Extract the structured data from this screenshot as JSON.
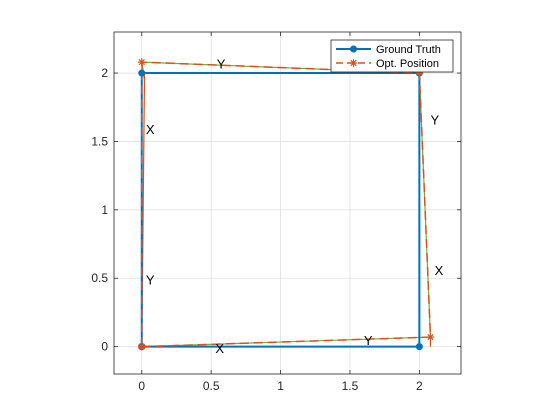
{
  "chart_data": {
    "type": "line",
    "xlim": [
      -0.2,
      2.3
    ],
    "ylim": [
      -0.2,
      2.3
    ],
    "xticks": [
      0,
      0.5,
      1,
      1.5,
      2
    ],
    "yticks": [
      0,
      0.5,
      1,
      1.5,
      2
    ],
    "xtick_labels": [
      "0",
      "0.5",
      "1",
      "1.5",
      "2"
    ],
    "ytick_labels": [
      "0",
      "0.5",
      "1",
      "1.5",
      "2"
    ],
    "grid": true,
    "legend_position": "top-right",
    "series": [
      {
        "name": "Ground Truth",
        "color": "#0072BD",
        "style": "solid",
        "marker": "circle",
        "x": [
          0,
          2,
          2,
          0,
          0
        ],
        "y": [
          0,
          0,
          2,
          2,
          0
        ]
      },
      {
        "name": "Opt. Position",
        "color": "#D95319",
        "style": "dashed",
        "marker": "asterisk",
        "x": [
          0,
          2.08,
          2.0,
          0.0,
          0.0
        ],
        "y": [
          0,
          0.07,
          2.0,
          2.08,
          0.0
        ]
      }
    ],
    "orientation_segments": [
      {
        "color": "#D95319",
        "x": [
          2.08,
          2.08
        ],
        "y": [
          0.07,
          0.0
        ]
      },
      {
        "color": "#77AC30",
        "x": [
          2.08,
          0.0
        ],
        "y": [
          0.07,
          0.0
        ]
      },
      {
        "color": "#77AC30",
        "x": [
          2.0,
          2.08
        ],
        "y": [
          2.0,
          0.07
        ]
      },
      {
        "color": "#D95319",
        "x": [
          2.0,
          2.0
        ],
        "y": [
          2.0,
          1.9
        ]
      },
      {
        "color": "#77AC30",
        "x": [
          0.0,
          2.0
        ],
        "y": [
          2.08,
          2.0
        ]
      },
      {
        "color": "#D95319",
        "x": [
          0.0,
          0.02
        ],
        "y": [
          2.08,
          1.95
        ]
      },
      {
        "color": "#77AC30",
        "x": [
          0.0,
          0.0
        ],
        "y": [
          0.0,
          2.08
        ]
      },
      {
        "color": "#D95319",
        "x": [
          0.0,
          0.02
        ],
        "y": [
          0.0,
          2.0
        ]
      }
    ],
    "annotations": [
      {
        "text": "X",
        "x": 0.53,
        "y": -0.01
      },
      {
        "text": "Y",
        "x": 1.6,
        "y": 0.05
      },
      {
        "text": "X",
        "x": 2.11,
        "y": 0.56
      },
      {
        "text": "Y",
        "x": 2.08,
        "y": 1.66
      },
      {
        "text": "Y",
        "x": 0.54,
        "y": 2.07
      },
      {
        "text": "X",
        "x": 0.03,
        "y": 1.59
      },
      {
        "text": "Y",
        "x": 0.03,
        "y": 0.49
      }
    ]
  }
}
